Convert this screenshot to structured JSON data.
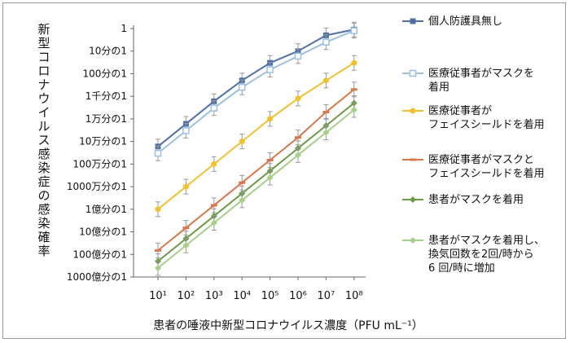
{
  "chart_data": {
    "type": "line",
    "ylabel": "新型コロナウイルス感染症の感染確率",
    "xlabel": "患者の唾液中新型コロナウイルス濃度（PFU mL⁻¹）",
    "x_ticks": [
      "10¹",
      "10²",
      "10³",
      "10⁴",
      "10⁵",
      "10⁶",
      "10⁷",
      "10⁸"
    ],
    "y_ticks": [
      "1",
      "10分の1",
      "100分の1",
      "1千分の1",
      "1万分の1",
      "10万分の1",
      "100万分の1",
      "1000万分の1",
      "1億分の1",
      "10億分の1",
      "100億分の1",
      "1000億分の1"
    ],
    "y_scale": "log",
    "series": [
      {
        "name": "個人防護具無し",
        "color": "#4f6fa9",
        "marker": "square-filled",
        "values": [
          6e-06,
          6e-05,
          0.0006,
          0.005,
          0.03,
          0.1,
          0.5,
          0.9
        ]
      },
      {
        "name": "医療従事者がマスクを\n着用",
        "color": "#9cc0e0",
        "marker": "square-open",
        "values": [
          3e-06,
          3e-05,
          0.0003,
          0.0025,
          0.015,
          0.06,
          0.25,
          0.8
        ]
      },
      {
        "name": "医療従事者が\nフェイスシールドを着用",
        "color": "#f2c12e",
        "marker": "circle",
        "values": [
          1e-08,
          1e-07,
          1e-06,
          1e-05,
          0.0001,
          0.0008,
          0.005,
          0.03
        ]
      },
      {
        "name": "医療従事者がマスクと\nフェイスシールドを着用",
        "color": "#d9774a",
        "marker": "dash",
        "values": [
          1.5e-10,
          1.5e-09,
          1.5e-08,
          1.5e-07,
          1.5e-06,
          1.5e-05,
          0.0002,
          0.002
        ]
      },
      {
        "name": "患者がマスクを着用",
        "color": "#6b9a45",
        "marker": "diamond",
        "values": [
          5e-11,
          5e-10,
          5e-09,
          5e-08,
          5e-07,
          5e-06,
          5e-05,
          0.0005
        ]
      },
      {
        "name": "患者がマスクを着用し、\n換気回数を2回/時から\n6 回/時に増加",
        "color": "#a6d08a",
        "marker": "diamond",
        "values": [
          2.5e-11,
          2.5e-10,
          2.5e-09,
          2.5e-08,
          2.5e-07,
          2.5e-06,
          2.5e-05,
          0.00025
        ]
      }
    ]
  }
}
